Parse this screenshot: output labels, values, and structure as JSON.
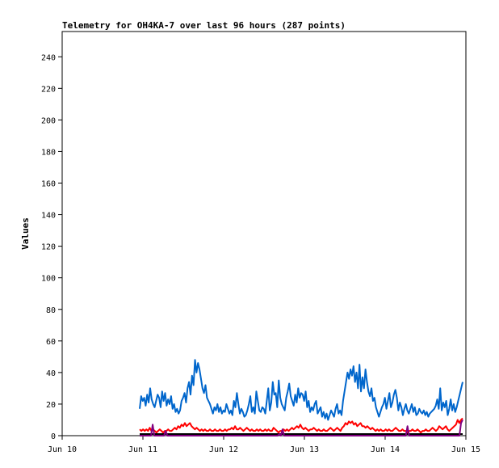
{
  "chart_data": {
    "type": "line",
    "title": "Telemetry for OH4KA-7 over last 96 hours (287 points)",
    "xlabel": "",
    "ylabel": "Values",
    "x_ticks": [
      "Jun 10",
      "Jun 11",
      "Jun 12",
      "Jun 13",
      "Jun 14",
      "Jun 15"
    ],
    "y_ticks": [
      0,
      20,
      40,
      60,
      80,
      100,
      120,
      140,
      160,
      180,
      200,
      220,
      240
    ],
    "xlim": [
      "Jun 10 00:00",
      "Jun 15 00:00"
    ],
    "ylim": [
      0,
      256
    ],
    "grid": false,
    "series": [
      {
        "color": "#0066cc",
        "x_start_day": 10.96,
        "x_end_day": 14.96,
        "values": [
          17,
          25,
          22,
          24,
          19,
          26,
          21,
          30,
          23,
          20,
          18,
          22,
          26,
          24,
          18,
          28,
          22,
          27,
          19,
          23,
          20,
          25,
          17,
          20,
          15,
          17,
          14,
          16,
          22,
          24,
          27,
          21,
          30,
          34,
          26,
          38,
          32,
          48,
          40,
          46,
          42,
          36,
          30,
          27,
          32,
          24,
          22,
          20,
          17,
          14,
          18,
          16,
          20,
          15,
          18,
          14,
          16,
          15,
          20,
          17,
          14,
          16,
          13,
          22,
          18,
          27,
          20,
          14,
          17,
          15,
          12,
          13,
          16,
          20,
          25,
          15,
          18,
          14,
          28,
          22,
          16,
          15,
          18,
          17,
          14,
          22,
          30,
          16,
          21,
          34,
          26,
          27,
          18,
          35,
          24,
          20,
          18,
          16,
          24,
          28,
          33,
          25,
          22,
          19,
          26,
          21,
          30,
          24,
          27,
          26,
          22,
          28,
          18,
          22,
          15,
          18,
          16,
          20,
          22,
          14,
          16,
          18,
          12,
          15,
          11,
          14,
          10,
          13,
          16,
          14,
          12,
          17,
          20,
          14,
          16,
          13,
          22,
          28,
          34,
          40,
          36,
          42,
          38,
          44,
          34,
          40,
          30,
          45,
          28,
          37,
          30,
          42,
          34,
          28,
          25,
          30,
          22,
          24,
          18,
          15,
          12,
          15,
          18,
          20,
          24,
          17,
          22,
          27,
          18,
          21,
          26,
          29,
          24,
          16,
          21,
          18,
          13,
          17,
          20,
          16,
          14,
          17,
          20,
          15,
          18,
          13,
          14,
          17,
          15,
          14,
          16,
          13,
          15,
          12,
          14,
          15,
          16,
          17,
          19,
          23,
          17,
          30,
          16,
          21,
          18,
          22,
          13,
          17,
          23,
          16,
          20,
          15,
          18,
          22,
          26,
          30,
          34
        ]
      },
      {
        "color": "#ff0000",
        "x_start_day": 10.96,
        "x_end_day": 14.96,
        "values": [
          4,
          3,
          4,
          3,
          4,
          3,
          5,
          3,
          4,
          3,
          2,
          3,
          4,
          3,
          2,
          3,
          3,
          4,
          3,
          3,
          4,
          5,
          4,
          6,
          5,
          7,
          6,
          8,
          6,
          7,
          8,
          6,
          5,
          4,
          5,
          4,
          3,
          4,
          3,
          4,
          3,
          3,
          4,
          3,
          3,
          4,
          3,
          3,
          4,
          3,
          3,
          4,
          3,
          4,
          4,
          5,
          4,
          6,
          4,
          4,
          5,
          4,
          3,
          4,
          5,
          4,
          3,
          4,
          3,
          3,
          4,
          3,
          4,
          3,
          3,
          4,
          3,
          4,
          3,
          3,
          5,
          4,
          3,
          2,
          3,
          3,
          4,
          3,
          4,
          3,
          4,
          5,
          4,
          5,
          6,
          5,
          7,
          5,
          4,
          5,
          4,
          3,
          4,
          4,
          5,
          4,
          3,
          4,
          3,
          3,
          4,
          3,
          3,
          4,
          5,
          4,
          3,
          4,
          5,
          4,
          3,
          5,
          6,
          8,
          7,
          9,
          8,
          9,
          7,
          8,
          6,
          7,
          8,
          6,
          6,
          5,
          6,
          5,
          4,
          5,
          4,
          3,
          4,
          3,
          4,
          3,
          3,
          4,
          3,
          4,
          3,
          3,
          4,
          5,
          4,
          3,
          3,
          4,
          3,
          3,
          2,
          3,
          3,
          4,
          3,
          3,
          4,
          3,
          2,
          3,
          3,
          4,
          3,
          3,
          4,
          5,
          4,
          3,
          4,
          6,
          5,
          4,
          5,
          6,
          4,
          3,
          4,
          5,
          6,
          7,
          10,
          8,
          10,
          11
        ]
      },
      {
        "color": "#000000",
        "x_start_day": 10.96,
        "x_end_day": 14.96,
        "values": [
          1,
          1,
          1,
          1,
          1,
          1,
          1,
          1,
          1,
          1,
          1,
          1,
          1,
          1,
          1,
          1,
          1,
          1,
          1,
          1,
          1,
          1,
          1,
          1,
          1,
          1,
          1,
          1,
          1,
          1,
          1,
          1,
          1,
          1,
          1,
          1,
          1,
          1,
          1,
          1,
          1,
          1,
          1,
          1,
          1,
          1,
          1,
          1
        ]
      },
      {
        "color": "#800080",
        "x_start_day": 10.96,
        "x_end_day": 14.96,
        "values": [
          0,
          0,
          0,
          0,
          0,
          0,
          0,
          0,
          7,
          0,
          0,
          0,
          0,
          0,
          0,
          0,
          3,
          0,
          0,
          0,
          0,
          0,
          0,
          0,
          0,
          0,
          0,
          0,
          0,
          0,
          0,
          0,
          0,
          0,
          0,
          0,
          0,
          0,
          0,
          0,
          0,
          0,
          0,
          0,
          0,
          0,
          0,
          0,
          0,
          0,
          0,
          0,
          0,
          0,
          0,
          0,
          0,
          0,
          0,
          0,
          0,
          0,
          0,
          0,
          0,
          0,
          0,
          0,
          0,
          0,
          0,
          0,
          0,
          0,
          0,
          0,
          0,
          0,
          0,
          0,
          0,
          0,
          0,
          0,
          0,
          0,
          1,
          0,
          4,
          0,
          0,
          0,
          0,
          0,
          0,
          0,
          0,
          0,
          0,
          0,
          0,
          0,
          0,
          0,
          0,
          0,
          0,
          0,
          0,
          0,
          0,
          0,
          0,
          0,
          0,
          0,
          0,
          0,
          0,
          0,
          0,
          0,
          0,
          0,
          0,
          0,
          0,
          0,
          0,
          0,
          0,
          0,
          0,
          0,
          0,
          0,
          0,
          0,
          0,
          0,
          0,
          0,
          0,
          0,
          0,
          0,
          0,
          0,
          0,
          0,
          0,
          0,
          0,
          0,
          0,
          0,
          0,
          0,
          0,
          0,
          0,
          0,
          0,
          0,
          0,
          6,
          0,
          0,
          0,
          0,
          0,
          0,
          0,
          0,
          0,
          0,
          0,
          0,
          0,
          0,
          0,
          0,
          0,
          0,
          0,
          0,
          0,
          0,
          0,
          0,
          0,
          0,
          0,
          0,
          0,
          0,
          0,
          0,
          8,
          10
        ]
      }
    ]
  }
}
